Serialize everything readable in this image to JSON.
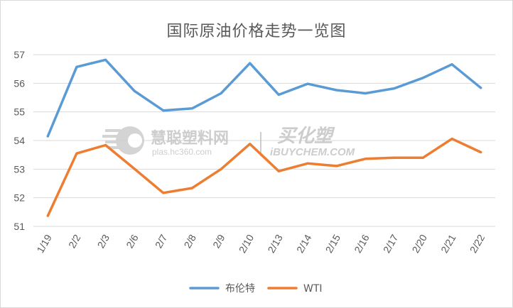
{
  "chart_data": {
    "type": "line",
    "title": "国际原油价格走势一览图",
    "categories": [
      "1/19",
      "2/2",
      "2/3",
      "2/6",
      "2/7",
      "2/8",
      "2/9",
      "2/10",
      "2/13",
      "2/14",
      "2/15",
      "2/16",
      "2/17",
      "2/20",
      "2/21",
      "2/22"
    ],
    "series": [
      {
        "name": "布伦特",
        "color": "#5b9bd5",
        "values": [
          54.15,
          56.57,
          56.82,
          55.73,
          55.05,
          55.12,
          55.65,
          56.7,
          55.6,
          55.98,
          55.76,
          55.65,
          55.82,
          56.19,
          56.66,
          55.84
        ]
      },
      {
        "name": "WTI",
        "color": "#ed7d31",
        "values": [
          51.37,
          53.55,
          53.84,
          53.01,
          52.17,
          52.34,
          53.0,
          53.88,
          52.93,
          53.2,
          53.11,
          53.36,
          53.4,
          53.4,
          54.06,
          53.59
        ]
      }
    ],
    "ylim": [
      51,
      57
    ],
    "yticks": [
      51,
      52,
      53,
      54,
      55,
      56,
      57
    ],
    "grid": "horizontal",
    "legend": "bottom"
  },
  "watermark": {
    "cn_name": "慧聪塑料网",
    "url": "plas.hc360.com",
    "brand_cn": "买化塑",
    "brand_en": "iBUYCHEM.COM"
  }
}
